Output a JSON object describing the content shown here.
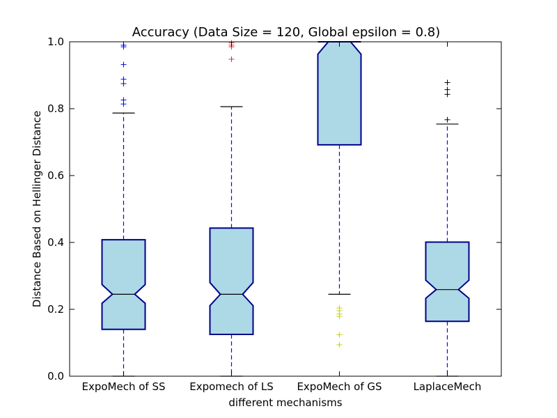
{
  "chart_data": {
    "type": "boxplot",
    "title": "Accuracy (Data Size = 120, Global epsilon = 0.8)",
    "xlabel": "different mechanisms",
    "ylabel": "Distance Based on Hellinger Distance",
    "ylim": [
      0.0,
      1.0
    ],
    "yticks": [
      "0.0",
      "0.2",
      "0.4",
      "0.6",
      "0.8",
      "1.0"
    ],
    "grid": false,
    "notched": true,
    "box_fill": "#add8e6",
    "box_edge": "#00008b",
    "whisker_color": "#0000ff",
    "categories": [
      "ExpoMech of SS",
      "Expomech of LS",
      "ExpoMech of GS",
      "LaplaceMech"
    ],
    "boxes": [
      {
        "label": "ExpoMech of SS",
        "whislo": 0.0,
        "q1": 0.14,
        "med": 0.245,
        "q3": 0.408,
        "whishi": 0.787,
        "notch_lo": 0.218,
        "notch_hi": 0.274,
        "fliers": [
          0.985,
          0.99,
          0.932,
          0.888,
          0.875,
          0.826,
          0.814
        ],
        "flier_color": "#0000ff"
      },
      {
        "label": "Expomech of LS",
        "whislo": 0.0,
        "q1": 0.125,
        "med": 0.245,
        "q3": 0.443,
        "whishi": 0.806,
        "notch_lo": 0.211,
        "notch_hi": 0.28,
        "fliers": [
          0.997,
          0.99,
          0.985,
          0.948
        ],
        "flier_color": "#cc3333"
      },
      {
        "label": "ExpoMech of GS",
        "whislo": 0.245,
        "q1": 0.692,
        "med": 1.0,
        "q3": 1.0,
        "whishi": 1.0,
        "notch_lo": 0.963,
        "notch_hi": 1.0,
        "fliers": [
          0.204,
          0.196,
          0.186,
          0.179,
          0.124,
          0.094
        ],
        "flier_color": "#cccc00"
      },
      {
        "label": "LaplaceMech",
        "whislo": 0.0,
        "q1": 0.164,
        "med": 0.259,
        "q3": 0.401,
        "whishi": 0.754,
        "notch_lo": 0.233,
        "notch_hi": 0.287,
        "fliers": [
          0.878,
          0.857,
          0.843,
          0.767
        ],
        "flier_color": "#000000"
      }
    ]
  }
}
